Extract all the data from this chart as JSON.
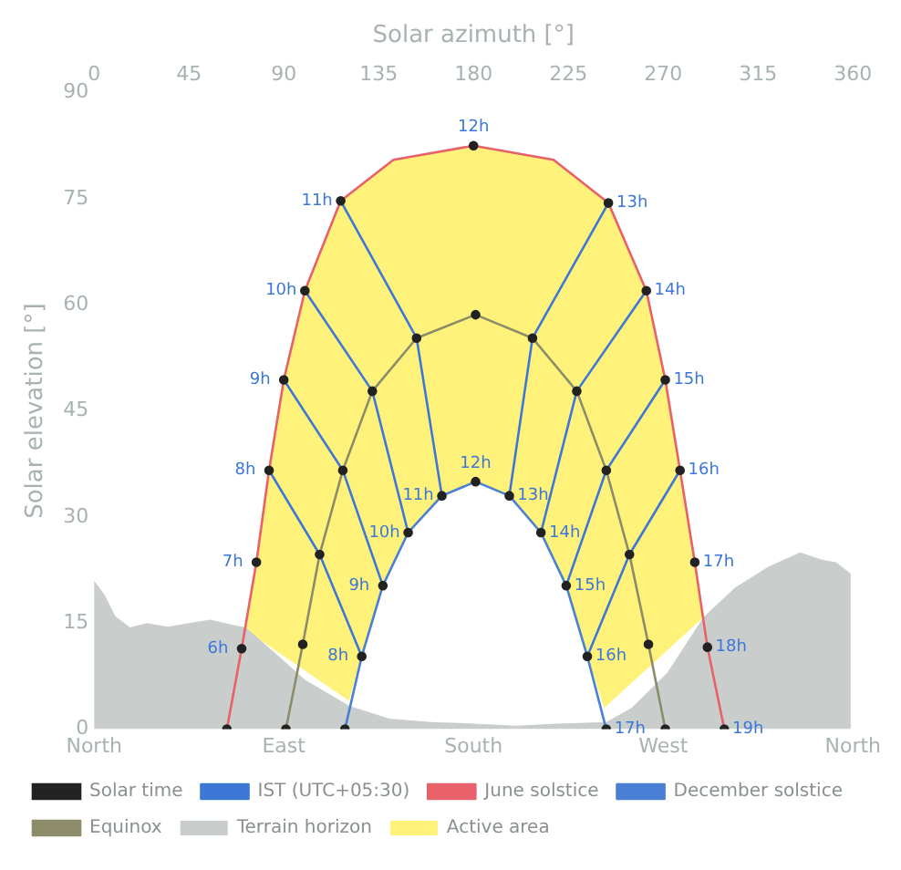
{
  "chart_data": {
    "type": "line",
    "xlabel": "Solar azimuth [°]",
    "ylabel": "Solar elevation [°]",
    "xlim": [
      0,
      360
    ],
    "xticks": [
      0,
      45,
      90,
      135,
      180,
      225,
      270,
      315,
      360
    ],
    "ylim": [
      0,
      90
    ],
    "yticks": [
      0,
      15,
      30,
      45,
      60,
      75,
      90
    ],
    "marker": "none",
    "legend": "bottom",
    "series": [
      {
        "name": "Terrain horizon",
        "type": "area",
        "color": "#c9cdcc",
        "x": [
          0,
          5,
          10,
          17,
          25,
          35,
          45,
          55,
          65,
          72,
          85,
          100,
          121,
          140,
          160,
          180,
          200,
          220,
          243,
          255,
          272,
          289,
          304,
          320,
          335,
          345,
          352,
          359
        ],
        "values": [
          21,
          19,
          16,
          14.4,
          15,
          14.5,
          15,
          15.5,
          14.8,
          14.4,
          11,
          7,
          3.3,
          1.5,
          1,
          0.8,
          0.5,
          0.8,
          1,
          3,
          8,
          15.8,
          20,
          23,
          25,
          24,
          23.6,
          22
        ]
      },
      {
        "name": "IST (UTC+05:30)",
        "type": "line",
        "color": "#3d78d8",
        "x": [
          83,
          107,
          127,
          null,
          90,
          118,
          137,
          null,
          100,
          132,
          149,
          null,
          117,
          153,
          165,
          null,
          244,
          208,
          197,
          null,
          262,
          229,
          212,
          null,
          271,
          243,
          224,
          null,
          278,
          254,
          234
        ],
        "values": [
          36.6,
          24.7,
          10.3,
          null,
          49.4,
          36.6,
          20.3,
          null,
          62,
          47.8,
          27.8,
          null,
          74.7,
          55.3,
          33,
          null,
          74.4,
          55.3,
          33,
          null,
          62,
          47.8,
          27.8,
          null,
          49.4,
          36.6,
          20.3,
          null,
          36.6,
          24.7,
          10.3
        ]
      },
      {
        "name": "June solstice",
        "type": "line",
        "color": "#e8606a",
        "x": [
          63,
          70,
          77,
          83,
          90,
          100,
          117,
          142,
          180,
          218,
          244,
          262,
          271,
          278,
          285,
          291,
          299
        ],
        "values": [
          0,
          11.4,
          23.6,
          36.6,
          49.4,
          62,
          74.7,
          80.5,
          82.5,
          80.5,
          74.4,
          62,
          49.4,
          36.6,
          23.6,
          11.6,
          0
        ]
      },
      {
        "name": "Active area",
        "type": "area",
        "color": "#fff27a",
        "x": [
          72,
          77,
          83,
          90,
          100,
          117,
          142,
          180,
          218,
          244,
          262,
          271,
          278,
          285,
          289,
          242,
          234,
          224,
          212,
          197,
          181,
          165,
          149,
          137,
          127,
          121
        ],
        "values": [
          14,
          23.6,
          36.6,
          49.4,
          62,
          74.7,
          80.5,
          82.5,
          80.5,
          74.4,
          62,
          49.4,
          36.6,
          23.6,
          15.8,
          3,
          10.3,
          20.3,
          27.8,
          33,
          35,
          33,
          27.8,
          20.3,
          10.3,
          4
        ]
      },
      {
        "name": "Solar time",
        "type": "scatter",
        "color": "#222222",
        "marker": "circle",
        "x": [
          63,
          70,
          77,
          83,
          90,
          100,
          117,
          180,
          244,
          262,
          271,
          278,
          285,
          291,
          299,
          91,
          99,
          107,
          118,
          132,
          153,
          181,
          208,
          229,
          243,
          254,
          263,
          271,
          119,
          127,
          137,
          149,
          165,
          181,
          197,
          212,
          224,
          234,
          243
        ],
        "values": [
          0,
          11.4,
          23.6,
          36.6,
          49.4,
          62,
          74.7,
          82.5,
          74.4,
          62,
          49.4,
          36.6,
          23.6,
          11.6,
          0,
          0,
          12,
          24.7,
          36.6,
          47.8,
          55.3,
          58.6,
          55.3,
          47.8,
          36.6,
          24.7,
          12,
          0,
          0,
          10.3,
          20.3,
          27.8,
          33,
          35,
          33,
          27.8,
          20.3,
          10.3,
          0
        ]
      },
      {
        "name": "December solstice",
        "type": "line",
        "color": "#4a7fd6",
        "x": [
          119,
          127,
          137,
          149,
          165,
          181,
          197,
          212,
          224,
          234,
          243
        ],
        "values": [
          0,
          10.3,
          20.3,
          27.8,
          33,
          35,
          33,
          27.8,
          20.3,
          10.3,
          0
        ]
      },
      {
        "name": "Equinox",
        "type": "line",
        "color": "#8c8c6a",
        "x": [
          91,
          99,
          107,
          118,
          132,
          153,
          181,
          208,
          229,
          243,
          254,
          263,
          271
        ],
        "values": [
          0,
          12,
          24.7,
          36.6,
          47.8,
          55.3,
          58.6,
          55.3,
          47.8,
          36.6,
          24.7,
          12,
          0
        ]
      }
    ],
    "annotations": [
      "North",
      "East",
      "South",
      "West",
      "North",
      {
        "text": "6h",
        "x": 70,
        "y": 11.4
      },
      {
        "text": "7h",
        "x": 77,
        "y": 23.6
      },
      {
        "text": "8h",
        "x": 83,
        "y": 36.6
      },
      {
        "text": "9h",
        "x": 90,
        "y": 49.4
      },
      {
        "text": "10h",
        "x": 100,
        "y": 62
      },
      {
        "text": "11h",
        "x": 117,
        "y": 74.7
      },
      {
        "text": "12h",
        "x": 180,
        "y": 82.5
      },
      {
        "text": "13h",
        "x": 244,
        "y": 74.4
      },
      {
        "text": "14h",
        "x": 262,
        "y": 62
      },
      {
        "text": "15h",
        "x": 271,
        "y": 49.4
      },
      {
        "text": "16h",
        "x": 278,
        "y": 36.6
      },
      {
        "text": "17h",
        "x": 285,
        "y": 23.6
      },
      {
        "text": "18h",
        "x": 291,
        "y": 11.6
      },
      {
        "text": "19h",
        "x": 299,
        "y": 0
      },
      {
        "text": "8h",
        "x": 127,
        "y": 10.3
      },
      {
        "text": "9h",
        "x": 137,
        "y": 20.3
      },
      {
        "text": "10h",
        "x": 149,
        "y": 27.8
      },
      {
        "text": "11h",
        "x": 165,
        "y": 33
      },
      {
        "text": "12h",
        "x": 181,
        "y": 35
      },
      {
        "text": "13h",
        "x": 197,
        "y": 33
      },
      {
        "text": "14h",
        "x": 212,
        "y": 27.8
      },
      {
        "text": "15h",
        "x": 224,
        "y": 20.3
      },
      {
        "text": "16h",
        "x": 234,
        "y": 10.3
      },
      {
        "text": "17h",
        "x": 243,
        "y": 0
      }
    ]
  }
}
